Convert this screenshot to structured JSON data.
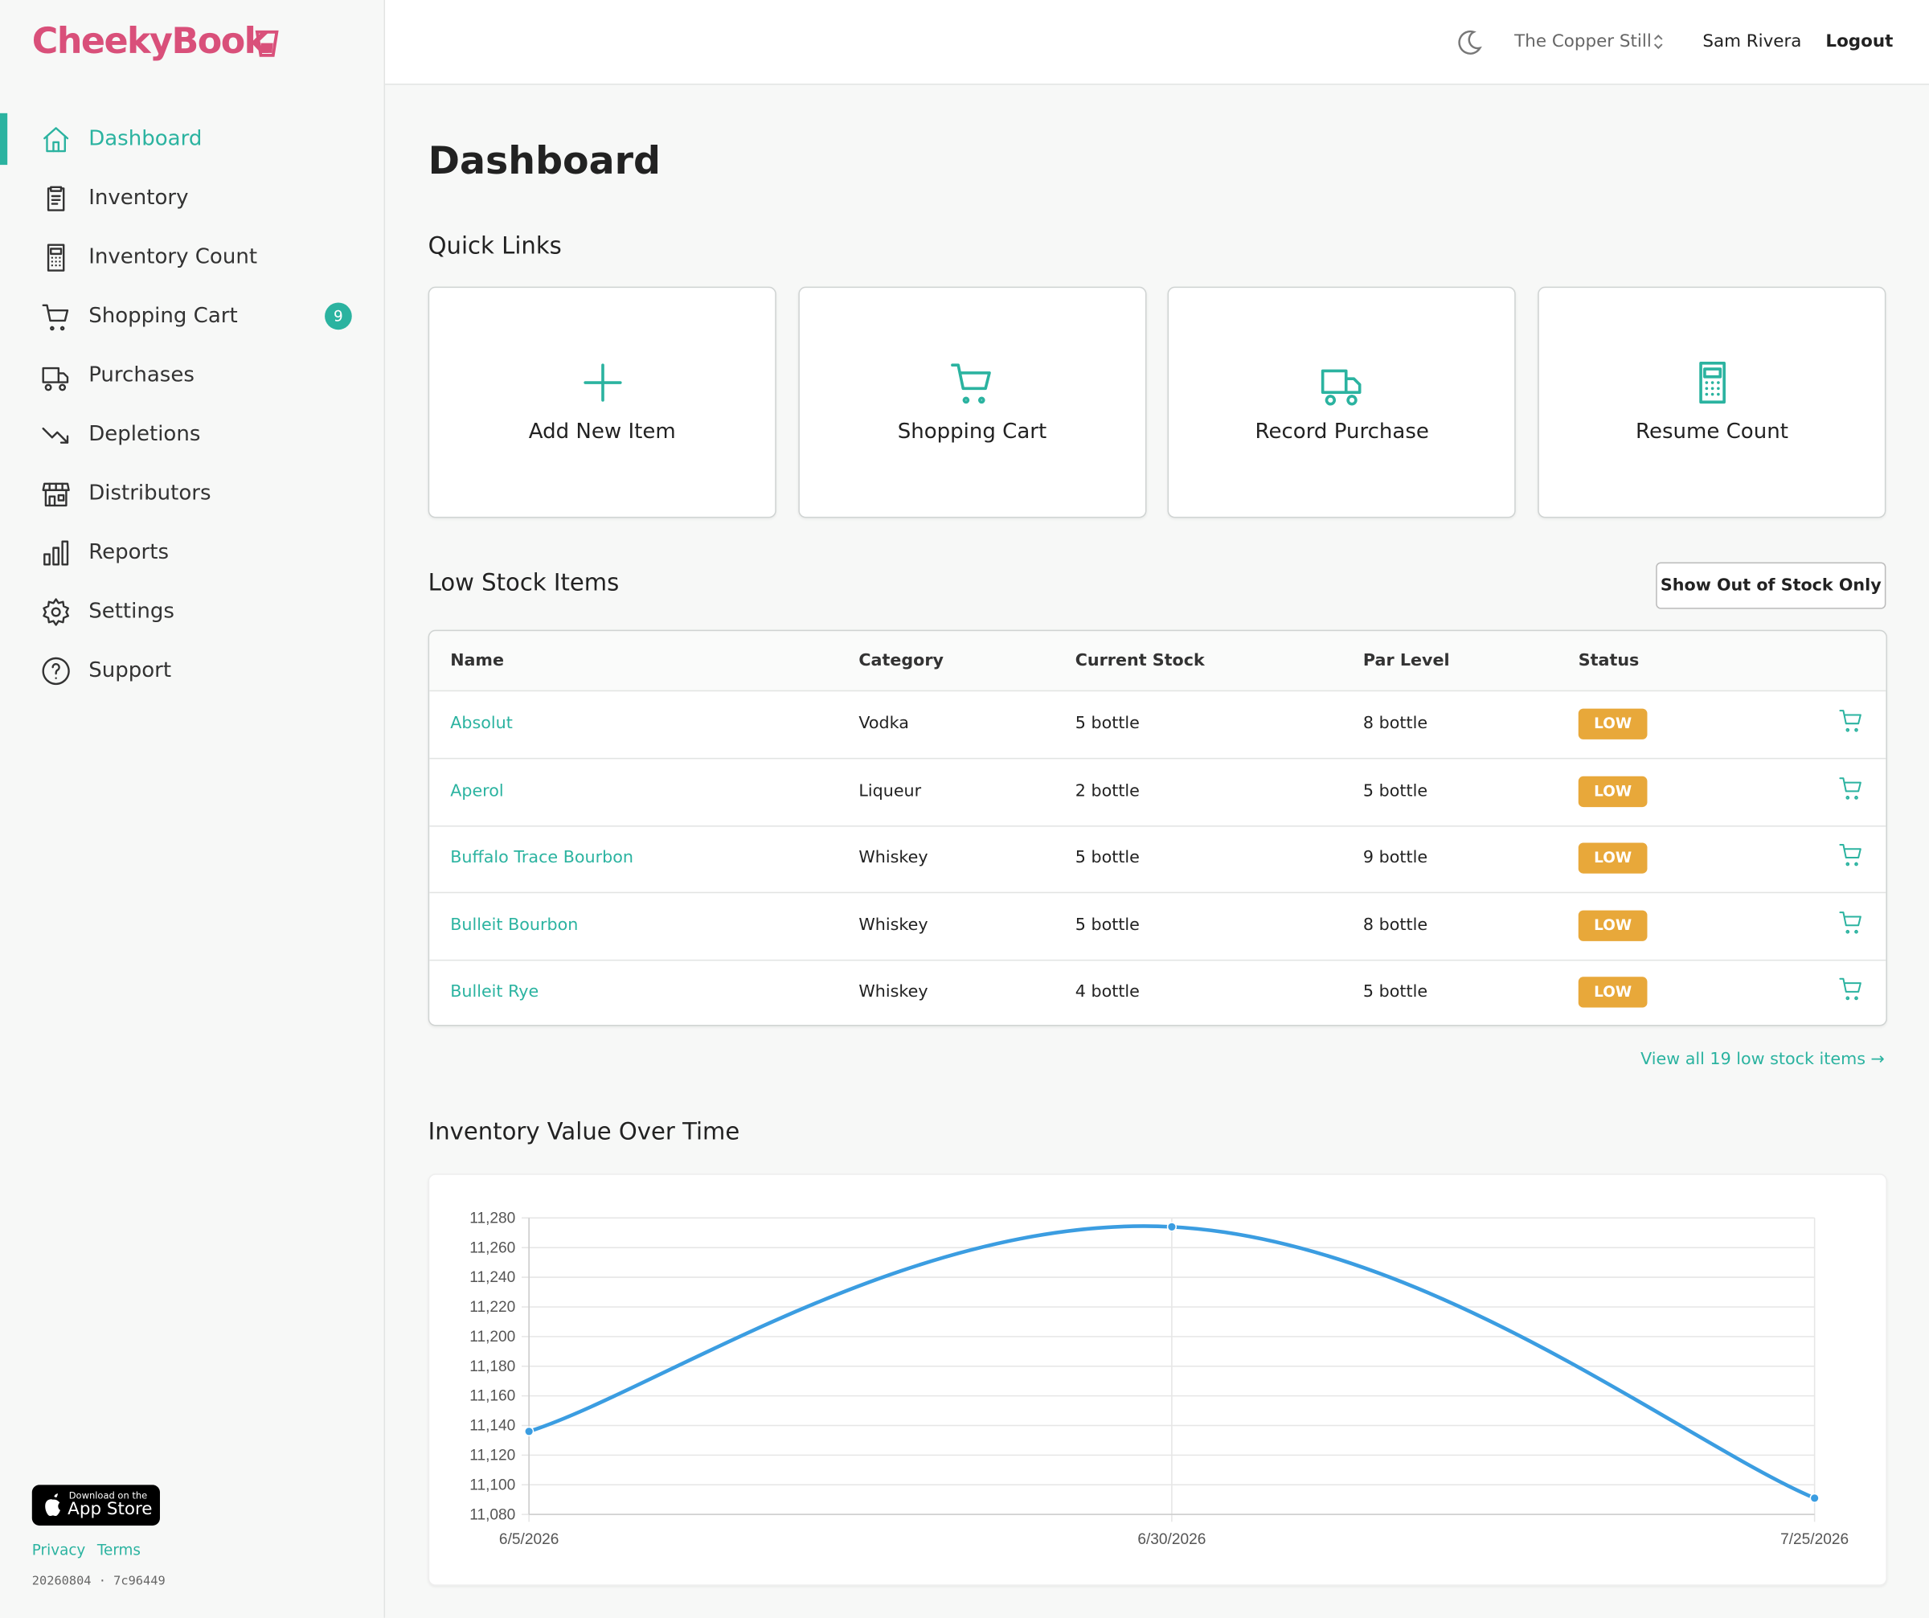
{
  "brand": "CheekyBook",
  "nav": [
    {
      "label": "Dashboard",
      "active": true
    },
    {
      "label": "Inventory"
    },
    {
      "label": "Inventory Count"
    },
    {
      "label": "Shopping Cart",
      "badge": 9
    },
    {
      "label": "Purchases"
    },
    {
      "label": "Depletions"
    },
    {
      "label": "Distributors"
    },
    {
      "label": "Reports"
    },
    {
      "label": "Settings"
    },
    {
      "label": "Support"
    }
  ],
  "header": {
    "venue": "The Copper Still",
    "user": "Sam Rivera",
    "logout": "Logout"
  },
  "page_title": "Dashboard",
  "quick_links": {
    "title": "Quick Links",
    "items": [
      "Add New Item",
      "Shopping Cart",
      "Record Purchase",
      "Resume Count"
    ]
  },
  "low_stock": {
    "title": "Low Stock Items",
    "filter_button": "Show Out of Stock Only",
    "columns": [
      "Name",
      "Category",
      "Current Stock",
      "Par Level",
      "Status"
    ],
    "rows": [
      [
        "Absolut",
        "Vodka",
        "5 bottle",
        "8 bottle",
        "LOW"
      ],
      [
        "Aperol",
        "Liqueur",
        "2 bottle",
        "5 bottle",
        "LOW"
      ],
      [
        "Buffalo Trace Bourbon",
        "Whiskey",
        "5 bottle",
        "9 bottle",
        "LOW"
      ],
      [
        "Bulleit Bourbon",
        "Whiskey",
        "5 bottle",
        "8 bottle",
        "LOW"
      ],
      [
        "Bulleit Rye",
        "Whiskey",
        "4 bottle",
        "5 bottle",
        "LOW"
      ]
    ],
    "view_all": "View all 19 low stock items →"
  },
  "chart_data": {
    "type": "line",
    "title": "Inventory Value Over Time",
    "x": [
      "6/5/2026",
      "6/30/2026",
      "7/25/2026"
    ],
    "series": [
      {
        "color": "#3b9de1",
        "values": [
          11136,
          11274,
          11091
        ]
      }
    ],
    "ylim": [
      11080,
      11280
    ],
    "yticks": [
      {
        "value": 11080,
        "label": "11,080"
      },
      {
        "value": 11100,
        "label": "11,100"
      },
      {
        "value": 11120,
        "label": "11,120"
      },
      {
        "value": 11140,
        "label": "11,140"
      },
      {
        "value": 11160,
        "label": "11,160"
      },
      {
        "value": 11180,
        "label": "11,180"
      },
      {
        "value": 11200,
        "label": "11,200"
      },
      {
        "value": 11220,
        "label": "11,220"
      },
      {
        "value": 11240,
        "label": "11,240"
      },
      {
        "value": 11260,
        "label": "11,260"
      },
      {
        "value": 11280,
        "label": "11,280"
      }
    ],
    "grid": true
  },
  "footer": {
    "app_store_small": "Download on the",
    "app_store": "App Store",
    "links": [
      "Privacy",
      "Terms"
    ],
    "build": "20260804 · 7c96449"
  }
}
